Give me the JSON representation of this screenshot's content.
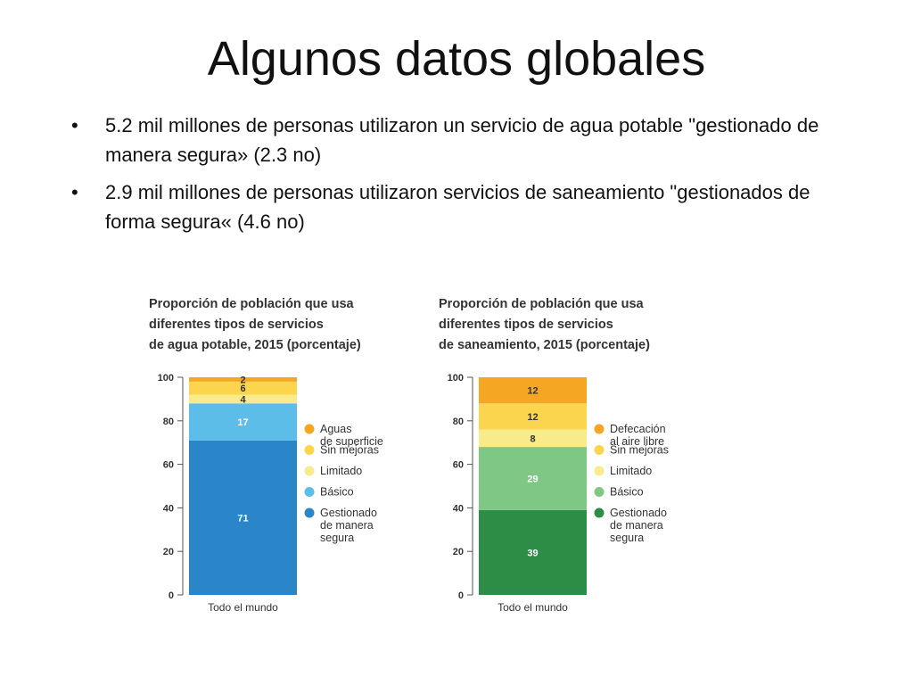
{
  "slide": {
    "title": "Algunos datos globales",
    "bullets": [
      "5.2 mil millones de personas utilizaron un servicio de agua potable \"gestionado de manera segura» (2.3 no)",
      "2.9 mil millones de personas utilizaron servicios de saneamiento \"gestionados de forma segura« (4.6 no)"
    ]
  },
  "chart_data": [
    {
      "type": "bar",
      "stacked": true,
      "title": "Proporción de población que usa diferentes tipos de servicios de agua potable, 2015 (porcentaje)",
      "title_lines": [
        "Proporción de población que usa",
        "diferentes tipos de servicios",
        "de agua potable, 2015 (porcentaje)"
      ],
      "categories": [
        "Todo el mundo"
      ],
      "ylim": [
        0,
        100
      ],
      "yticks": [
        0,
        20,
        40,
        60,
        80,
        100
      ],
      "series": [
        {
          "name": "Gestionado de manera segura",
          "label_lines": [
            "Gestionado",
            "de manera",
            "segura"
          ],
          "values": [
            71
          ],
          "color": "#2b86c9",
          "text_color": "#ffffff"
        },
        {
          "name": "Básico",
          "label_lines": [
            "Básico"
          ],
          "values": [
            17
          ],
          "color": "#5bbde8",
          "text_color": "#ffffff"
        },
        {
          "name": "Limitado",
          "label_lines": [
            "Limitado"
          ],
          "values": [
            4
          ],
          "color": "#f7eb8c",
          "text_color": "#333333"
        },
        {
          "name": "Sin mejoras",
          "label_lines": [
            "Sin mejoras"
          ],
          "values": [
            6
          ],
          "color": "#fcd54f",
          "text_color": "#333333"
        },
        {
          "name": "Aguas de superficie",
          "label_lines": [
            "Aguas",
            "de superficie"
          ],
          "values": [
            2
          ],
          "color": "#f5a623",
          "text_color": "#333333"
        }
      ],
      "legend_position": "right"
    },
    {
      "type": "bar",
      "stacked": true,
      "title": "Proporción de población que usa diferentes tipos de servicios de saneamiento, 2015 (porcentaje)",
      "title_lines": [
        "Proporción de población que usa",
        "diferentes tipos de servicios",
        "de saneamiento, 2015 (porcentaje)"
      ],
      "categories": [
        "Todo el mundo"
      ],
      "ylim": [
        0,
        100
      ],
      "yticks": [
        0,
        20,
        40,
        60,
        80,
        100
      ],
      "series": [
        {
          "name": "Gestionado de manera segura",
          "label_lines": [
            "Gestionado",
            "de manera",
            "segura"
          ],
          "values": [
            39
          ],
          "color": "#2d8c46",
          "text_color": "#ffffff"
        },
        {
          "name": "Básico",
          "label_lines": [
            "Básico"
          ],
          "values": [
            29
          ],
          "color": "#7fc785",
          "text_color": "#ffffff"
        },
        {
          "name": "Limitado",
          "label_lines": [
            "Limitado"
          ],
          "values": [
            8
          ],
          "color": "#f7eb8c",
          "text_color": "#333333"
        },
        {
          "name": "Sin mejoras",
          "label_lines": [
            "Sin mejoras"
          ],
          "values": [
            12
          ],
          "color": "#fcd54f",
          "text_color": "#333333"
        },
        {
          "name": "Defecación al aire libre",
          "label_lines": [
            "Defecación",
            "al aire libre"
          ],
          "values": [
            12
          ],
          "color": "#f5a623",
          "text_color": "#333333"
        }
      ],
      "legend_position": "right"
    }
  ]
}
